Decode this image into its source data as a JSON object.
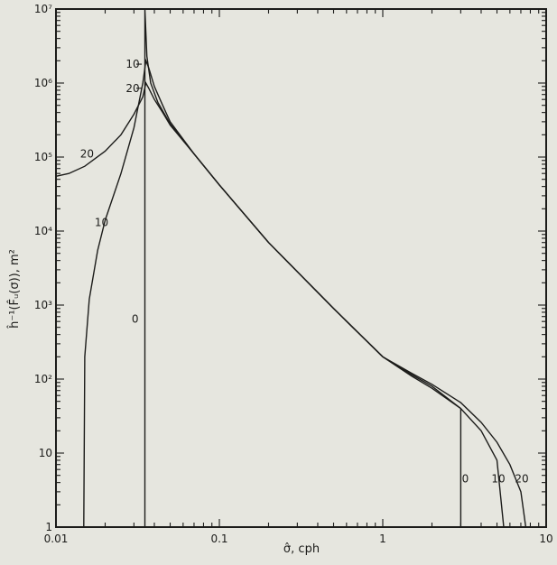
{
  "chart_data": {
    "type": "line",
    "title": "",
    "xlabel": "σ̂, cph",
    "ylabel": "ĥ⁻¹(F̂ᵤ(σ)), m²",
    "xscale": "log",
    "yscale": "log",
    "xlim": [
      0.01,
      10
    ],
    "ylim": [
      1,
      10000000
    ],
    "grid": false,
    "legend": "none",
    "x_ticks": [
      {
        "value": 0.01,
        "label": "0.01"
      },
      {
        "value": 0.1,
        "label": "0.1"
      },
      {
        "value": 1,
        "label": "1"
      },
      {
        "value": 10,
        "label": "10"
      }
    ],
    "y_ticks": [
      {
        "value": 1,
        "label": "1"
      },
      {
        "value": 10,
        "label": "10"
      },
      {
        "value": 100,
        "label": "10²"
      },
      {
        "value": 1000,
        "label": "10³"
      },
      {
        "value": 10000,
        "label": "10⁴"
      },
      {
        "value": 100000,
        "label": "10⁵"
      },
      {
        "value": 1000000,
        "label": "10⁶"
      },
      {
        "value": 10000000,
        "label": "10⁷"
      }
    ],
    "series": [
      {
        "name": "0",
        "x": [
          0.035,
          0.035,
          0.036,
          0.038,
          0.042,
          0.05,
          0.07,
          0.1,
          0.2,
          0.5,
          1.0,
          1.5,
          2.0,
          3.0,
          3.0
        ],
        "y": [
          1,
          10000000,
          2300000,
          1000000,
          550000,
          280000,
          110000,
          42000,
          7000,
          900,
          200,
          110,
          75,
          40,
          1
        ]
      },
      {
        "name": "10",
        "x": [
          0.0148,
          0.015,
          0.016,
          0.018,
          0.02,
          0.025,
          0.03,
          0.034,
          0.0355,
          0.037,
          0.04,
          0.045,
          0.05,
          0.07,
          0.1,
          0.2,
          0.5,
          1.0,
          1.5,
          2.0,
          3.0,
          4.0,
          5.0,
          5.5
        ],
        "y": [
          1,
          200,
          1200,
          5500,
          14000,
          60000,
          250000,
          1000000,
          2000000,
          1600000,
          900000,
          500000,
          300000,
          110000,
          42000,
          7000,
          900,
          200,
          115,
          80,
          40,
          20,
          8,
          1
        ]
      },
      {
        "name": "20",
        "x": [
          0.01,
          0.012,
          0.015,
          0.02,
          0.025,
          0.03,
          0.034,
          0.0355,
          0.037,
          0.04,
          0.045,
          0.05,
          0.07,
          0.1,
          0.2,
          0.5,
          1.0,
          1.5,
          2.0,
          3.0,
          4.0,
          5.0,
          6.0,
          7.0,
          7.5
        ],
        "y": [
          55000,
          60000,
          75000,
          120000,
          200000,
          380000,
          650000,
          1000000,
          850000,
          600000,
          400000,
          270000,
          110000,
          42000,
          7000,
          900,
          200,
          120,
          85,
          48,
          26,
          14,
          7,
          3,
          1
        ]
      }
    ],
    "annotations": [
      {
        "text": "10",
        "x": 0.0295,
        "y": 1800000
      },
      {
        "text": "20",
        "x": 0.0295,
        "y": 850000
      },
      {
        "text": "20",
        "x": 0.0155,
        "y": 110000
      },
      {
        "text": "10",
        "x": 0.019,
        "y": 13000
      },
      {
        "text": "0",
        "x": 0.0305,
        "y": 650
      },
      {
        "text": "0",
        "x": 3.2,
        "y": 4.5
      },
      {
        "text": "10",
        "x": 5.1,
        "y": 4.5
      },
      {
        "text": "20",
        "x": 7.1,
        "y": 4.5
      }
    ]
  }
}
